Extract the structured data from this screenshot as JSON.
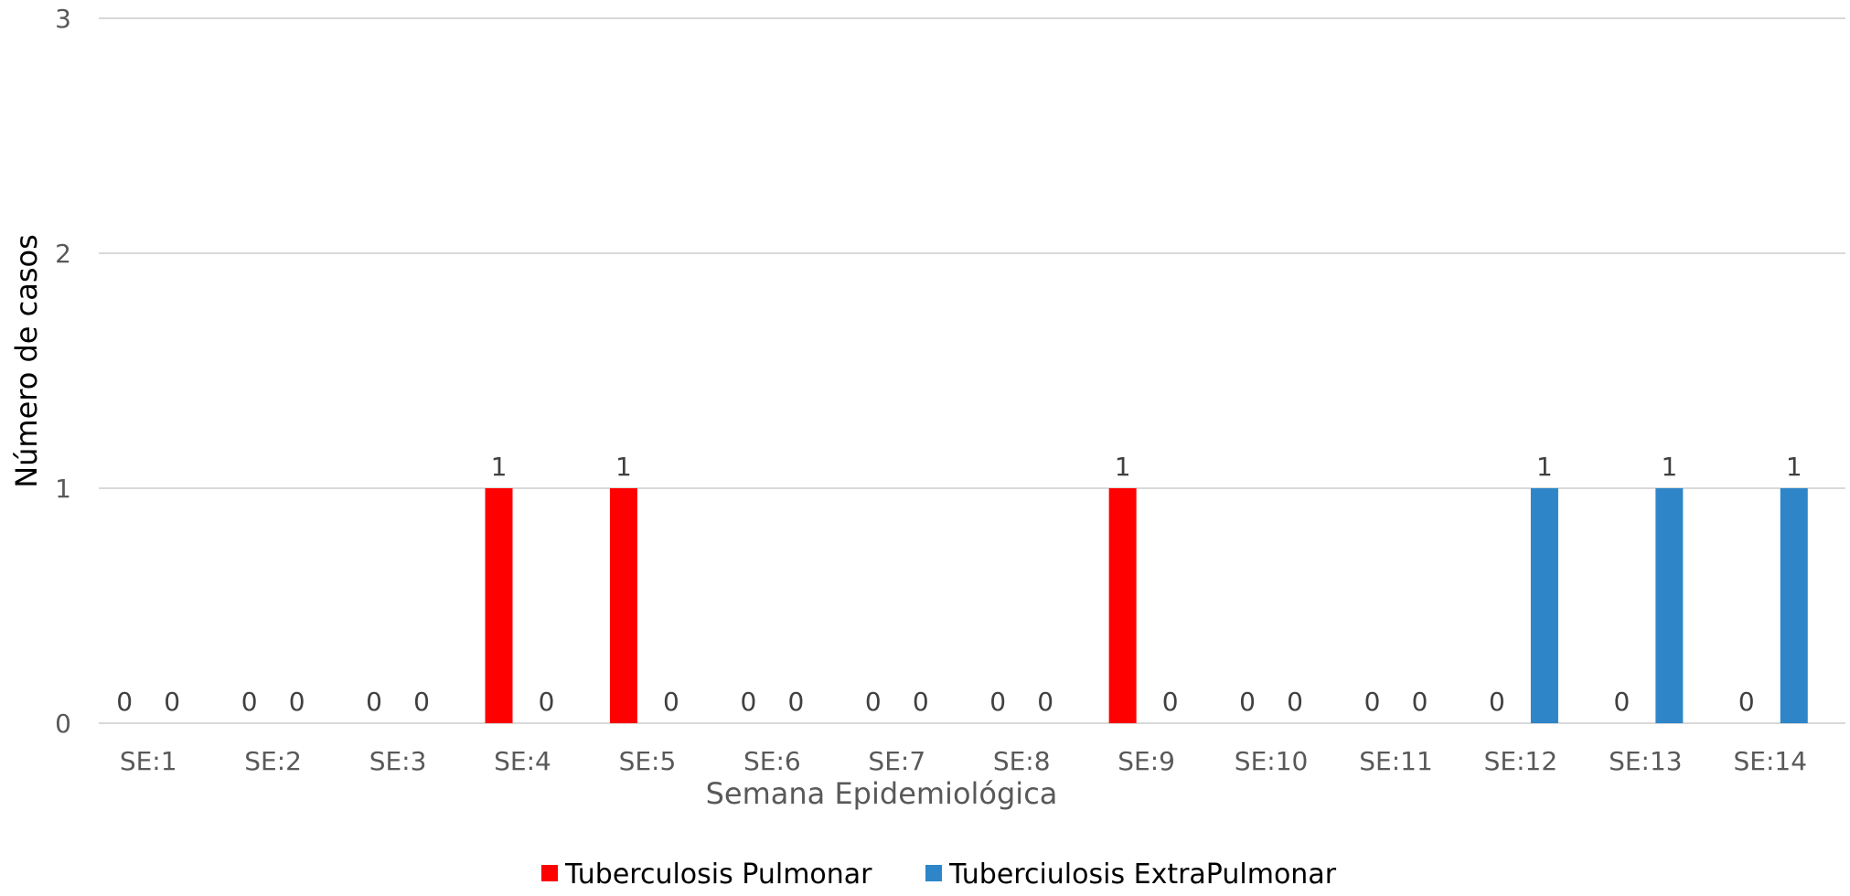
{
  "chart_data": {
    "type": "bar",
    "title": "",
    "xlabel": "Semana Epidemiológica",
    "ylabel": "Número de casos",
    "ylim": [
      0,
      3
    ],
    "yticks": [
      "0",
      "1",
      "2",
      "3"
    ],
    "grid": true,
    "legend_position": "bottom",
    "categories": [
      "SE:1",
      "SE:2",
      "SE:3",
      "SE:4",
      "SE:5",
      "SE:6",
      "SE:7",
      "SE:8",
      "SE:9",
      "SE:10",
      "SE:11",
      "SE:12",
      "SE:13",
      "SE:14"
    ],
    "series": [
      {
        "name": "Tuberculosis Pulmonar",
        "color": "#FF0000",
        "values": [
          0,
          0,
          0,
          1,
          1,
          0,
          0,
          0,
          1,
          0,
          0,
          0,
          0,
          0
        ]
      },
      {
        "name": "Tuberciulosis ExtraPulmonar",
        "color": "#2E86C8",
        "values": [
          0,
          0,
          0,
          0,
          0,
          0,
          0,
          0,
          0,
          0,
          0,
          1,
          1,
          1
        ]
      }
    ]
  }
}
